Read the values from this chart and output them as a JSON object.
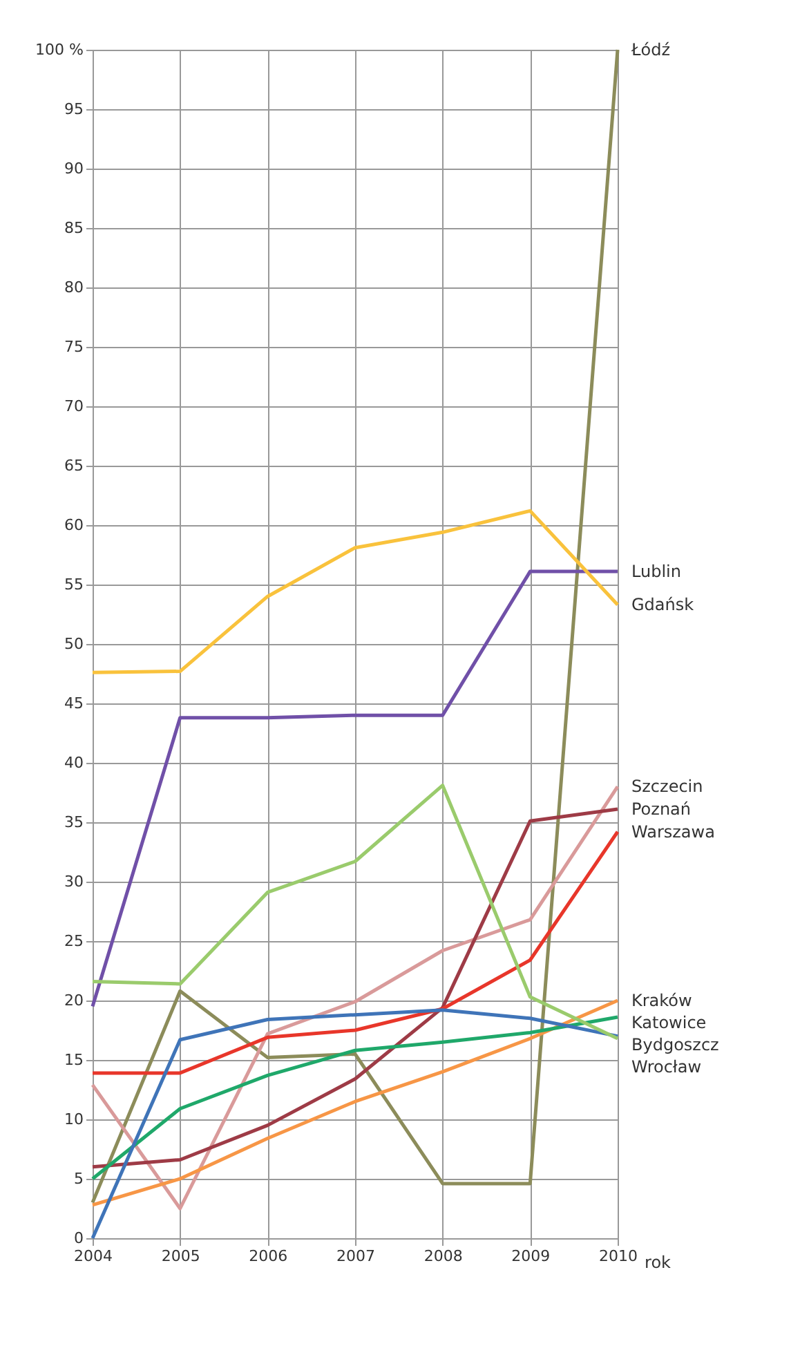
{
  "chart_data": {
    "type": "line",
    "xlabel": "rok",
    "x": [
      2004,
      2005,
      2006,
      2007,
      2008,
      2009,
      2010
    ],
    "xlim": [
      2004,
      2010
    ],
    "xticks": [
      2004,
      2005,
      2006,
      2007,
      2008,
      2009,
      2010
    ],
    "ylim": [
      0,
      100
    ],
    "yticks": [
      0,
      5,
      10,
      15,
      20,
      25,
      30,
      35,
      40,
      45,
      50,
      55,
      60,
      65,
      70,
      75,
      80,
      85,
      90,
      95,
      {
        "value": 100,
        "label": "100 %"
      }
    ],
    "grid": true,
    "marker": "none",
    "line_style": "solid",
    "series": [
      {
        "name": "Łódź",
        "color": "#8c8c5a",
        "values": [
          3,
          20.8,
          15.2,
          15.5,
          4.6,
          4.6,
          100
        ]
      },
      {
        "name": "Lublin",
        "color": "#7050a8",
        "values": [
          19.5,
          43.8,
          43.8,
          44,
          44,
          56.1,
          56.1
        ]
      },
      {
        "name": "Gdańsk",
        "color": "#f9c23c",
        "values": [
          47.6,
          47.7,
          54,
          58.1,
          59.4,
          61.2,
          53.3
        ]
      },
      {
        "name": "Szczecin",
        "color": "#d99a9a",
        "values": [
          12.9,
          2.5,
          17.2,
          19.9,
          24.2,
          26.8,
          38
        ]
      },
      {
        "name": "Poznań",
        "color": "#9e3b46",
        "values": [
          6,
          6.6,
          9.5,
          13.4,
          19.4,
          35.1,
          36.1
        ]
      },
      {
        "name": "Warszawa",
        "color": "#e8362a",
        "values": [
          13.9,
          13.9,
          16.9,
          17.5,
          19.3,
          23.4,
          34.2
        ]
      },
      {
        "name": "Kraków",
        "color": "#f79646",
        "values": [
          2.8,
          5,
          8.4,
          11.5,
          14,
          16.8,
          20
        ]
      },
      {
        "name": "Katowice",
        "color": "#1fa86a",
        "values": [
          5,
          10.9,
          13.7,
          15.8,
          16.5,
          17.3,
          18.6
        ]
      },
      {
        "name": "Bydgoszcz",
        "color": "#3f74b8",
        "values": [
          0,
          16.7,
          18.4,
          18.8,
          19.2,
          18.5,
          17
        ]
      },
      {
        "name": "Wrocław",
        "color": "#9acb6c",
        "values": [
          21.6,
          21.4,
          29.1,
          31.7,
          38.1,
          20.3,
          16.8
        ]
      }
    ]
  }
}
